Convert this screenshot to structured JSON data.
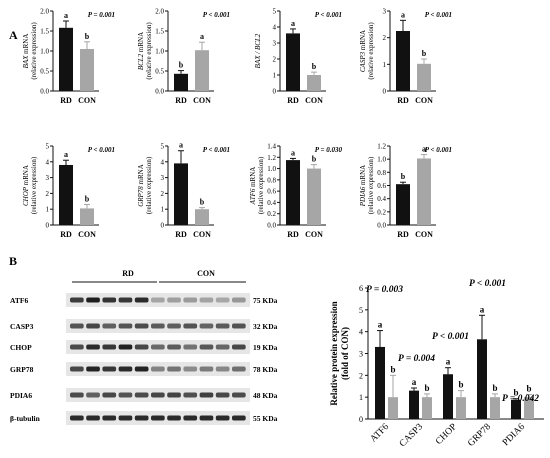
{
  "panel_labels": {
    "a": "A",
    "b": "B"
  },
  "colors": {
    "rd": "#111111",
    "con": "#a6a6a6",
    "axis": "#111111"
  },
  "chart_data": [
    {
      "type": "bar",
      "panel": "A",
      "categories": [
        "RD",
        "CON"
      ],
      "values": [
        1.58,
        1.05
      ],
      "errors": [
        0.17,
        0.18
      ],
      "letters": [
        "a",
        "b"
      ],
      "ylabel_gene": "BAX",
      "ylabel_rest": " mRNA",
      "ylabel2": "(relative expression)",
      "ylim": [
        0,
        2.0
      ],
      "yticks": [
        "0.0",
        "0.5",
        "1.0",
        "1.5",
        "2.0"
      ],
      "pvalue": "P = 0.001"
    },
    {
      "type": "bar",
      "panel": "A",
      "categories": [
        "RD",
        "CON"
      ],
      "values": [
        0.43,
        1.02
      ],
      "errors": [
        0.08,
        0.2
      ],
      "letters": [
        "b",
        "a"
      ],
      "ylabel_gene": "BCL2",
      "ylabel_rest": " mRNA",
      "ylabel2": "(relative expression)",
      "ylim": [
        0,
        2.0
      ],
      "yticks": [
        "0.0",
        "0.5",
        "1.0",
        "1.5",
        "2.0"
      ],
      "pvalue": "P < 0.001"
    },
    {
      "type": "bar",
      "panel": "A",
      "categories": [
        "RD",
        "CON"
      ],
      "values": [
        3.6,
        1.0
      ],
      "errors": [
        0.28,
        0.18
      ],
      "letters": [
        "a",
        "b"
      ],
      "ylabel_gene": "BAX / BCL2",
      "ylabel_rest": "",
      "ylabel2": "",
      "ylim": [
        0,
        5
      ],
      "yticks": [
        "0",
        "1",
        "2",
        "3",
        "4",
        "5"
      ],
      "pvalue": "P < 0.001"
    },
    {
      "type": "bar",
      "panel": "A",
      "categories": [
        "RD",
        "CON"
      ],
      "values": [
        2.25,
        1.02
      ],
      "errors": [
        0.4,
        0.18
      ],
      "letters": [
        "a",
        "b"
      ],
      "ylabel_gene": "CASP3",
      "ylabel_rest": " mRNA",
      "ylabel2": "(relative expression)",
      "ylim": [
        0,
        3
      ],
      "yticks": [
        "0",
        "1",
        "2",
        "3"
      ],
      "pvalue": "P < 0.001"
    },
    {
      "type": "bar",
      "panel": "A",
      "categories": [
        "RD",
        "CON"
      ],
      "values": [
        3.8,
        1.05
      ],
      "errors": [
        0.3,
        0.25
      ],
      "letters": [
        "a",
        "b"
      ],
      "ylabel_gene": "CHOP",
      "ylabel_rest": " mRNA",
      "ylabel2": "(relative expression)",
      "ylim": [
        0,
        5
      ],
      "yticks": [
        "0",
        "1",
        "2",
        "3",
        "4",
        "5"
      ],
      "pvalue": "P < 0.001"
    },
    {
      "type": "bar",
      "panel": "A",
      "categories": [
        "RD",
        "CON"
      ],
      "values": [
        3.9,
        1.0
      ],
      "errors": [
        0.8,
        0.1
      ],
      "letters": [
        "a",
        "b"
      ],
      "ylabel_gene": "GRP78",
      "ylabel_rest": " mRNA",
      "ylabel2": "(relative expression)",
      "ylim": [
        0,
        5
      ],
      "yticks": [
        "0",
        "1",
        "2",
        "3",
        "4",
        "5"
      ],
      "pvalue": "P < 0.001"
    },
    {
      "type": "bar",
      "panel": "A",
      "categories": [
        "RD",
        "CON"
      ],
      "values": [
        1.15,
        1.0
      ],
      "errors": [
        0.03,
        0.07
      ],
      "letters": [
        "a",
        "b"
      ],
      "ylabel_gene": "ATF6",
      "ylabel_rest": " mRNA",
      "ylabel2": "(relative expression)",
      "ylim": [
        0,
        1.4
      ],
      "yticks": [
        "0.0",
        "0.2",
        "0.4",
        "0.6",
        "0.8",
        "1.0",
        "1.2",
        "1.4"
      ],
      "pvalue": "P = 0.030"
    },
    {
      "type": "bar",
      "panel": "A",
      "categories": [
        "RD",
        "CON"
      ],
      "values": [
        0.62,
        1.01
      ],
      "errors": [
        0.03,
        0.06
      ],
      "letters": [
        "b",
        "a"
      ],
      "ylabel_gene": "PDIA6",
      "ylabel_rest": " mRNA",
      "ylabel2": "(relative expression)",
      "ylim": [
        0,
        1.2
      ],
      "yticks": [
        "0.0",
        "0.2",
        "0.4",
        "0.6",
        "0.8",
        "1.0",
        "1.2"
      ],
      "pvalue": "P < 0.001"
    },
    {
      "type": "bar",
      "panel": "B",
      "categories": [
        "ATF6",
        "CASP3",
        "CHOP",
        "GRP78",
        "PDIA6"
      ],
      "series": [
        {
          "name": "RD",
          "values": [
            3.3,
            1.3,
            2.05,
            3.65,
            0.88
          ],
          "errors": [
            0.75,
            0.12,
            0.3,
            1.1,
            0.05
          ]
        },
        {
          "name": "CON",
          "values": [
            1.0,
            1.0,
            1.0,
            1.0,
            1.0
          ],
          "errors": [
            1.0,
            0.15,
            0.3,
            0.15,
            0.12
          ]
        }
      ],
      "letters_rd": [
        "a",
        "a",
        "a",
        "a",
        "b"
      ],
      "letters_con": [
        "b",
        "b",
        "b",
        "b",
        "b"
      ],
      "pvalues": [
        "P = 0.003",
        "P = 0.004",
        "P < 0.001",
        "P < 0.001",
        "P = 0.042"
      ],
      "ylabel": "Relative protein expression",
      "ylabel2": "(fold of CON)",
      "ylim": [
        0,
        6
      ],
      "yticks": [
        "0",
        "1",
        "2",
        "3",
        "4",
        "5",
        "6"
      ]
    }
  ],
  "blot": {
    "group_labels": [
      "RD",
      "CON"
    ],
    "rows": [
      {
        "protein": "ATF6",
        "size": "75 KDa"
      },
      {
        "protein": "CASP3",
        "size": "32 KDa"
      },
      {
        "protein": "CHOP",
        "size": "19 KDa"
      },
      {
        "protein": "GRP78",
        "size": "78 KDa"
      },
      {
        "protein": "PDIA6",
        "size": "48 KDa"
      },
      {
        "protein": "β-tubulin",
        "size": "55 KDa"
      }
    ],
    "intensities": [
      [
        0.78,
        0.92,
        0.82,
        0.8,
        0.86,
        0.25,
        0.28,
        0.3,
        0.26,
        0.24,
        0.32
      ],
      [
        0.66,
        0.72,
        0.6,
        0.66,
        0.7,
        0.62,
        0.6,
        0.66,
        0.58,
        0.62,
        0.66
      ],
      [
        0.7,
        0.86,
        0.8,
        0.9,
        0.72,
        0.55,
        0.62,
        0.5,
        0.64,
        0.56,
        0.72
      ],
      [
        0.72,
        0.9,
        0.8,
        0.86,
        0.9,
        0.42,
        0.5,
        0.38,
        0.46,
        0.4,
        0.52
      ],
      [
        0.7,
        0.6,
        0.72,
        0.66,
        0.7,
        0.72,
        0.74,
        0.68,
        0.76,
        0.72,
        0.7
      ],
      [
        0.86,
        0.86,
        0.86,
        0.86,
        0.86,
        0.86,
        0.86,
        0.86,
        0.86,
        0.86,
        0.86
      ]
    ]
  }
}
